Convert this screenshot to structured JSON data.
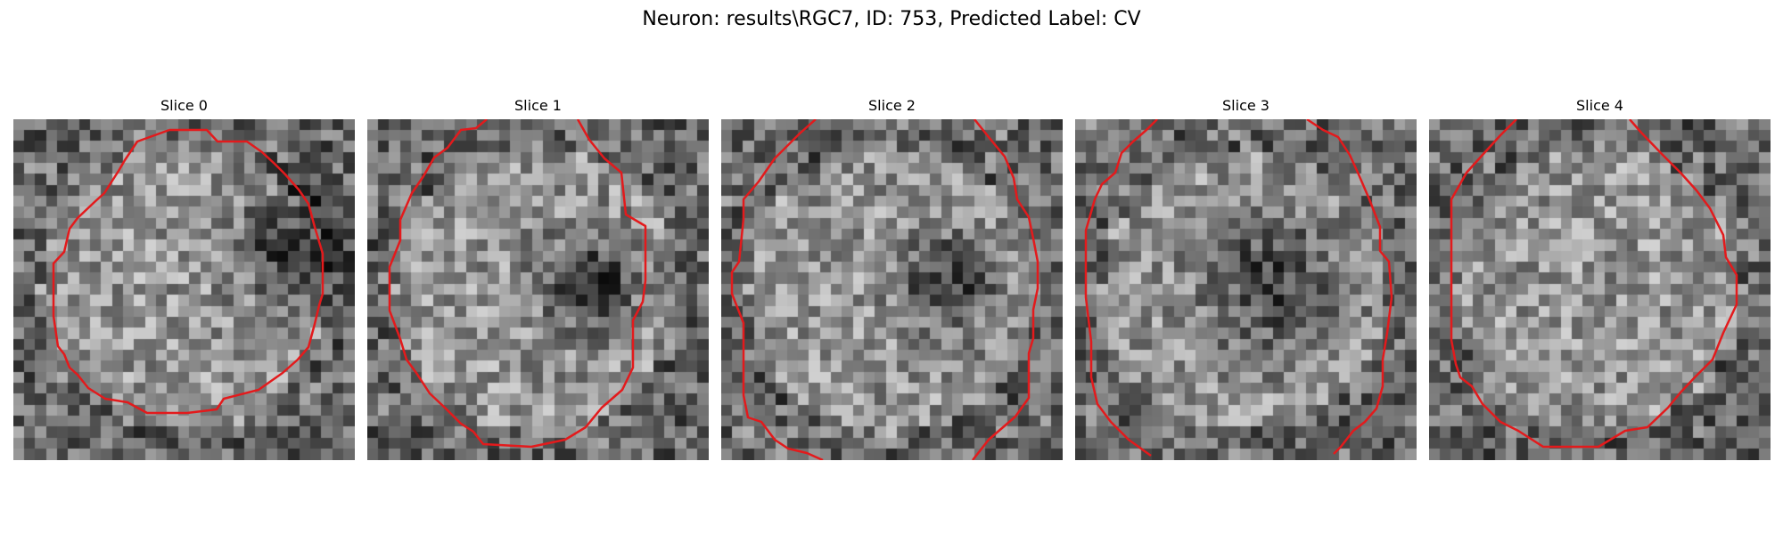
{
  "figure": {
    "title": "Neuron: results\\RGC7, ID: 753, Predicted Label: CV",
    "contour_color": "#e31a1c",
    "colormap": "grayscale",
    "panels": [
      {
        "title": "Slice 0",
        "dark_blob": "right",
        "contour": "closed-circle",
        "image": "grayscale-microscopy-tile"
      },
      {
        "title": "Slice 1",
        "dark_blob": "center-right",
        "contour": "closed-circle-clipped-top",
        "image": "grayscale-microscopy-tile"
      },
      {
        "title": "Slice 2",
        "dark_blob": "center-right",
        "contour": "open-arcs-clipped",
        "image": "grayscale-microscopy-tile"
      },
      {
        "title": "Slice 3",
        "dark_blob": "center",
        "contour": "open-arcs-clipped",
        "image": "grayscale-microscopy-tile"
      },
      {
        "title": "Slice 4",
        "dark_blob": "none",
        "contour": "closed-circle-clipped-top",
        "image": "grayscale-microscopy-tile"
      }
    ]
  }
}
